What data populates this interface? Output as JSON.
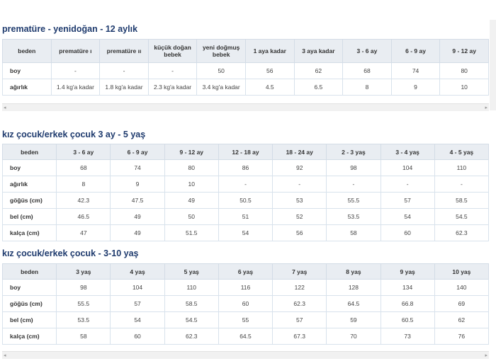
{
  "sections": [
    {
      "title": "prematüre - yenidoğan - 12 aylık",
      "table": {
        "header": [
          "beden",
          "prematüre ı",
          "prematüre ıı",
          "küçük doğan bebek",
          "yeni doğmuş bebek",
          "1 aya kadar",
          "3 aya kadar",
          "3 - 6 ay",
          "6 - 9 ay",
          "9 - 12 ay"
        ],
        "rows": [
          [
            "boy",
            "-",
            "-",
            "-",
            "50",
            "56",
            "62",
            "68",
            "74",
            "80"
          ],
          [
            "ağırlık",
            "1.4 kg'a kadar",
            "1.8 kg'a kadar",
            "2.3 kg'a kadar",
            "3.4 kg'a kadar",
            "4.5",
            "6.5",
            "8",
            "9",
            "10"
          ]
        ]
      }
    },
    {
      "title": "kız çocuk/erkek çocuk 3 ay - 5 yaş",
      "table": {
        "header": [
          "beden",
          "3 - 6 ay",
          "6 - 9 ay",
          "9 - 12 ay",
          "12 - 18 ay",
          "18 - 24 ay",
          "2 - 3 yaş",
          "3 - 4 yaş",
          "4 - 5 yaş"
        ],
        "rows": [
          [
            "boy",
            "68",
            "74",
            "80",
            "86",
            "92",
            "98",
            "104",
            "110"
          ],
          [
            "ağırlık",
            "8",
            "9",
            "10",
            "-",
            "-",
            "-",
            "-",
            "-"
          ],
          [
            "göğüs (cm)",
            "42.3",
            "47.5",
            "49",
            "50.5",
            "53",
            "55.5",
            "57",
            "58.5"
          ],
          [
            "bel (cm)",
            "46.5",
            "49",
            "50",
            "51",
            "52",
            "53.5",
            "54",
            "54.5"
          ],
          [
            "kalça (cm)",
            "47",
            "49",
            "51.5",
            "54",
            "56",
            "58",
            "60",
            "62.3"
          ]
        ]
      }
    },
    {
      "title": "kız çocuk/erkek çocuk - 3-10 yaş",
      "table": {
        "header": [
          "beden",
          "3 yaş",
          "4 yaş",
          "5 yaş",
          "6 yaş",
          "7 yaş",
          "8 yaş",
          "9 yaş",
          "10 yaş"
        ],
        "rows": [
          [
            "boy",
            "98",
            "104",
            "110",
            "116",
            "122",
            "128",
            "134",
            "140"
          ],
          [
            "göğüs (cm)",
            "55.5",
            "57",
            "58.5",
            "60",
            "62.3",
            "64.5",
            "66.8",
            "69"
          ],
          [
            "bel (cm)",
            "53.5",
            "54",
            "54.5",
            "55",
            "57",
            "59",
            "60.5",
            "62"
          ],
          [
            "kalça (cm)",
            "58",
            "60",
            "62.3",
            "64.5",
            "67.3",
            "70",
            "73",
            "76"
          ]
        ]
      }
    }
  ]
}
